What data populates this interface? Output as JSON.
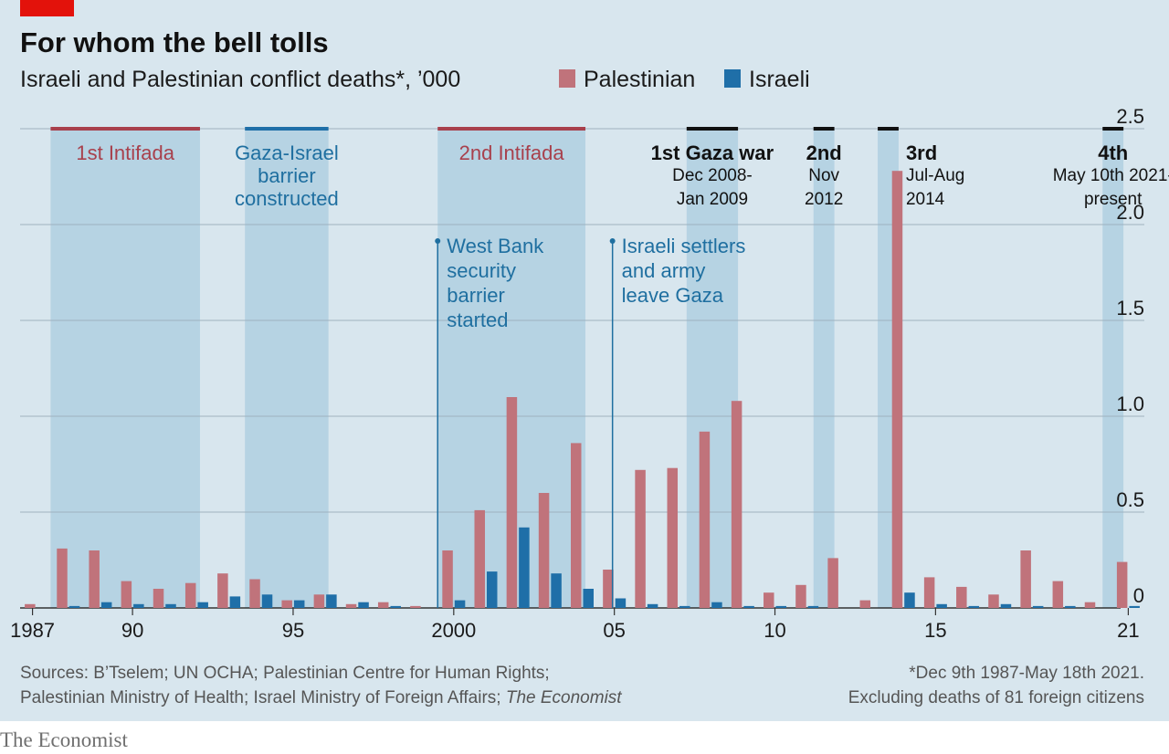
{
  "header": {
    "title": "For whom the bell tolls",
    "subtitle": "Israeli and Palestinian conflict deaths*, ’000"
  },
  "legend": [
    {
      "name": "Palestinian",
      "color": "#c0737b"
    },
    {
      "name": "Israeli",
      "color": "#1f6fa8"
    }
  ],
  "colors": {
    "background": "#d8e6ee",
    "shade": "#b6d3e3",
    "palestinian": "#c0737b",
    "israeli": "#1f6fa8",
    "grid": "#9fb2bf",
    "red_accent": "#e3120b",
    "annotation_blue": "#1f6fa0",
    "intifada_red": "#a8404c"
  },
  "chart_data": {
    "type": "bar",
    "title": "For whom the bell tolls",
    "subtitle": "Israeli and Palestinian conflict deaths*, ’000",
    "xlabel": "",
    "ylabel": "",
    "ylim": [
      0,
      2.5
    ],
    "yticks": [
      0,
      0.5,
      1.0,
      1.5,
      2.0,
      2.5
    ],
    "ytick_labels": [
      "0",
      "0.5",
      "1.0",
      "1.5",
      "2.0",
      "2.5"
    ],
    "y_axis_side": "right",
    "grid": true,
    "legend_position": "top",
    "categories": [
      1987,
      1988,
      1989,
      1990,
      1991,
      1992,
      1993,
      1994,
      1995,
      1996,
      1997,
      1998,
      1999,
      2000,
      2001,
      2002,
      2003,
      2004,
      2005,
      2006,
      2007,
      2008,
      2009,
      2010,
      2011,
      2012,
      2013,
      2014,
      2015,
      2016,
      2017,
      2018,
      2019,
      2020,
      2021
    ],
    "x_tick_labels": [
      {
        "year": 1987,
        "label": "1987"
      },
      {
        "year": 1990,
        "label": "90"
      },
      {
        "year": 1995,
        "label": "95"
      },
      {
        "year": 2000,
        "label": "2000"
      },
      {
        "year": 2005,
        "label": "05"
      },
      {
        "year": 2010,
        "label": "10"
      },
      {
        "year": 2015,
        "label": "15"
      },
      {
        "year": 2021,
        "label": "21"
      }
    ],
    "series": [
      {
        "name": "Palestinian",
        "color": "#c0737b",
        "values": [
          0.02,
          0.31,
          0.3,
          0.14,
          0.1,
          0.13,
          0.18,
          0.15,
          0.04,
          0.07,
          0.02,
          0.03,
          0.01,
          0.3,
          0.51,
          1.1,
          0.6,
          0.86,
          0.2,
          0.72,
          0.73,
          0.92,
          1.08,
          0.08,
          0.12,
          0.26,
          0.04,
          2.28,
          0.16,
          0.11,
          0.07,
          0.3,
          0.14,
          0.03,
          0.24
        ]
      },
      {
        "name": "Israeli",
        "color": "#1f6fa8",
        "values": [
          0.0,
          0.01,
          0.03,
          0.02,
          0.02,
          0.03,
          0.06,
          0.07,
          0.04,
          0.07,
          0.03,
          0.01,
          0.0,
          0.04,
          0.19,
          0.42,
          0.18,
          0.1,
          0.05,
          0.02,
          0.01,
          0.03,
          0.01,
          0.01,
          0.01,
          0.0,
          0.0,
          0.08,
          0.02,
          0.01,
          0.02,
          0.01,
          0.01,
          0.0,
          0.01
        ]
      }
    ],
    "periods": [
      {
        "name": "1st Intifada",
        "start": 1987.95,
        "end": 1992.6,
        "bar_color": "#a8404c",
        "label_color": "#a8404c",
        "label_bold": false,
        "label_lines": [
          "1st Intifada"
        ],
        "sub_lines": []
      },
      {
        "name": "Gaza-Israel barrier constructed",
        "start": 1994.0,
        "end": 1996.6,
        "bar_color": "#1f6fa8",
        "label_color": "#1f6fa0",
        "label_bold": false,
        "label_lines": [
          "Gaza-Israel",
          "barrier",
          "constructed"
        ],
        "sub_lines": []
      },
      {
        "name": "2nd Intifada",
        "start": 2000.0,
        "end": 2004.6,
        "bar_color": "#a8404c",
        "label_color": "#a8404c",
        "label_bold": false,
        "label_lines": [
          "2nd Intifada"
        ],
        "sub_lines": []
      },
      {
        "name": "1st Gaza war",
        "start": 2007.75,
        "end": 2009.35,
        "bar_color": "#111111",
        "label_color": "#111111",
        "label_bold": true,
        "label_lines": [
          "1st Gaza war"
        ],
        "sub_lines": [
          "Dec 2008-",
          "Jan 2009"
        ]
      },
      {
        "name": "2nd",
        "start": 2011.7,
        "end": 2012.35,
        "bar_color": "#111111",
        "label_color": "#111111",
        "label_bold": true,
        "label_lines": [
          "2nd"
        ],
        "sub_lines": [
          "Nov",
          "2012"
        ]
      },
      {
        "name": "3rd",
        "start": 2013.7,
        "end": 2014.35,
        "bar_color": "#111111",
        "label_color": "#111111",
        "label_bold": true,
        "label_lines": [
          "3rd"
        ],
        "sub_lines": [
          "Jul-Aug",
          "2014"
        ]
      },
      {
        "name": "4th",
        "start": 2020.7,
        "end": 2021.35,
        "bar_color": "#111111",
        "label_color": "#111111",
        "label_bold": true,
        "label_lines": [
          "4th"
        ],
        "sub_lines": [
          "May 10th 2021-",
          "present"
        ]
      }
    ],
    "annotations": [
      {
        "name": "West Bank security barrier started",
        "year": 2000.0,
        "lines": [
          "West Bank",
          "security",
          "barrier",
          "started"
        ]
      },
      {
        "name": "Israeli settlers and army leave Gaza",
        "year": 2005.0,
        "lines": [
          "Israeli settlers",
          "and army",
          "leave Gaza"
        ]
      }
    ]
  },
  "footer": {
    "sources_line1": "Sources: B’Tselem; UN OCHA; Palestinian Centre for Human Rights;",
    "sources_line2": "Palestinian Ministry of Health; Israel Ministry of Foreign Affairs;",
    "sources_line2_italic": "The Economist",
    "note_line1": "*Dec 9th 1987-May 18th 2021.",
    "note_line2": "Excluding deaths of 81 foreign citizens",
    "brand": "The Economist"
  }
}
